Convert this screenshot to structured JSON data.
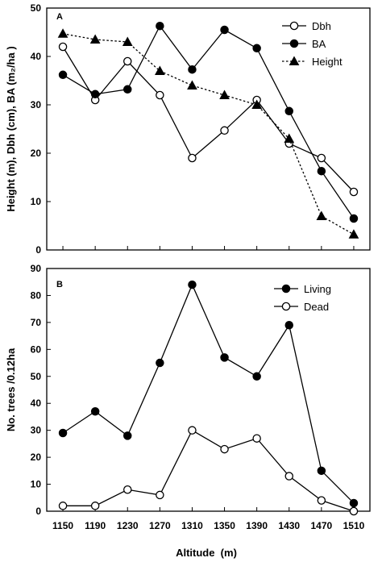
{
  "figure": {
    "xlabel": "Altitude  (m)",
    "x_ticks": [
      1150,
      1190,
      1230,
      1270,
      1310,
      1350,
      1390,
      1430,
      1470,
      1510
    ]
  },
  "chart_data": [
    {
      "type": "line",
      "panel_label": "A",
      "ylabel": "Height (m), Dbh (cm), BA (m₂/ha )",
      "ylim": [
        0,
        50
      ],
      "y_ticks": [
        0,
        10,
        20,
        30,
        40,
        50
      ],
      "xlabel": "",
      "x": [
        1150,
        1190,
        1230,
        1270,
        1310,
        1350,
        1390,
        1430,
        1470,
        1510
      ],
      "legend_position": "top-right",
      "grid": false,
      "series": [
        {
          "name": "Dbh",
          "marker": "circle-open",
          "line": "solid",
          "values": [
            42,
            31,
            39,
            32,
            19,
            24.7,
            31,
            22,
            19,
            12
          ]
        },
        {
          "name": "BA",
          "marker": "circle-filled",
          "line": "solid",
          "values": [
            36.2,
            32.2,
            33.2,
            46.3,
            37.3,
            45.5,
            41.7,
            28.7,
            16.3,
            6.5
          ]
        },
        {
          "name": "Height",
          "marker": "triangle-filled",
          "line": "dotted",
          "values": [
            44.7,
            43.5,
            43,
            37,
            34,
            32,
            30,
            23,
            7,
            3.2
          ]
        }
      ]
    },
    {
      "type": "line",
      "panel_label": "B",
      "ylabel": "No. trees /0.12ha",
      "ylim": [
        0,
        90
      ],
      "y_ticks": [
        0,
        10,
        20,
        30,
        40,
        50,
        60,
        70,
        80,
        90
      ],
      "xlabel": "Altitude  (m)",
      "x": [
        1150,
        1190,
        1230,
        1270,
        1310,
        1350,
        1390,
        1430,
        1470,
        1510
      ],
      "legend_position": "top-right",
      "grid": false,
      "series": [
        {
          "name": "Living",
          "marker": "circle-filled",
          "line": "solid",
          "values": [
            29,
            37,
            28,
            55,
            84,
            57,
            50,
            69,
            15,
            3
          ]
        },
        {
          "name": "Dead",
          "marker": "circle-open",
          "line": "solid",
          "values": [
            2,
            2,
            8,
            6,
            30,
            23,
            27,
            13,
            4,
            0
          ]
        }
      ]
    }
  ]
}
